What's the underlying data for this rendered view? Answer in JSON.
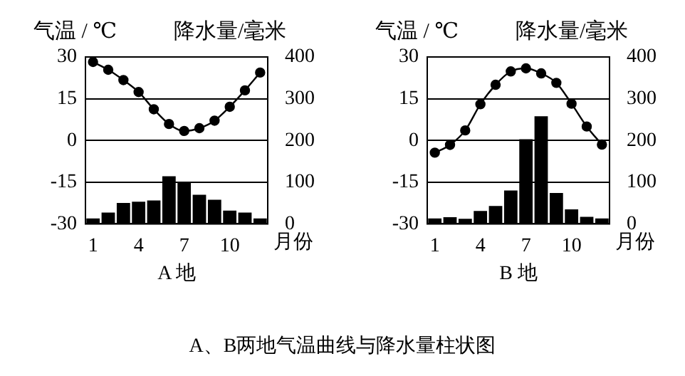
{
  "chart_data": [
    {
      "type": "bar",
      "title": "A 地",
      "xlabel": "月份",
      "ylabel": "气温 / ℃",
      "y2label": "降水量/毫米",
      "categories": [
        "1",
        null,
        null,
        "4",
        null,
        null,
        "7",
        null,
        null,
        "10",
        null,
        null
      ],
      "series": [
        {
          "type": "line",
          "color": "#000000",
          "values": [
            28.2,
            25.4,
            21.7,
            17.4,
            11.2,
            5.9,
            3.4,
            4.4,
            7.1,
            12.1,
            18.0,
            24.4
          ]
        },
        {
          "axis": "y2",
          "color": "#000000",
          "values": [
            13,
            27,
            50,
            53,
            56,
            114,
            101,
            70,
            58,
            32,
            27,
            13
          ]
        }
      ],
      "ylim": [
        -30,
        30
      ],
      "yticks": [
        -30,
        -15,
        0,
        15,
        30
      ],
      "y2lim": [
        0,
        400
      ],
      "y2ticks": [
        0,
        100,
        200,
        300,
        400
      ],
      "grid": "y",
      "marker": "circle",
      "annotations": [
        "A、B两地气温曲线与降水量柱状图"
      ]
    },
    {
      "type": "bar",
      "title": "B 地",
      "xlabel": "月份",
      "ylabel": "气温 / ℃",
      "y2label": "降水量/毫米",
      "categories": [
        "1",
        null,
        null,
        "4",
        null,
        null,
        "7",
        null,
        null,
        "10",
        null,
        null
      ],
      "series": [
        {
          "type": "line",
          "color": "#000000",
          "values": [
            -4.4,
            -1.6,
            3.6,
            13.0,
            20.0,
            24.8,
            25.9,
            24.1,
            20.7,
            13.2,
            5.0,
            -1.5
          ]
        },
        {
          "axis": "y2",
          "color": "#000000",
          "values": [
            13,
            16,
            12,
            31,
            43,
            80,
            203,
            258,
            74,
            35,
            17,
            13
          ]
        }
      ],
      "ylim": [
        -30,
        30
      ],
      "yticks": [
        -30,
        -15,
        0,
        15,
        30
      ],
      "y2lim": [
        0,
        400
      ],
      "y2ticks": [
        0,
        100,
        200,
        300,
        400
      ],
      "grid": "y",
      "marker": "circle"
    }
  ]
}
